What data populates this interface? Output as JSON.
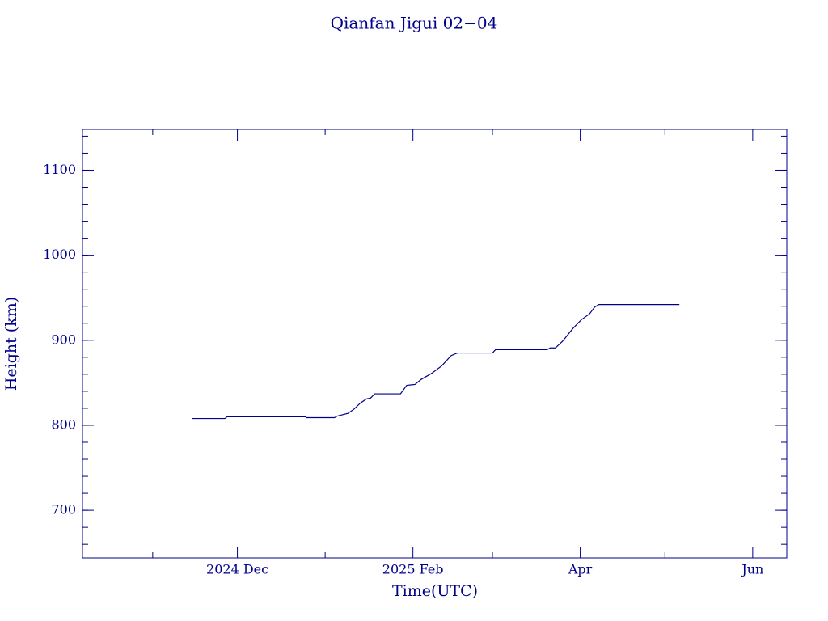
{
  "chart_data": {
    "type": "line",
    "title": "Qianfan Jigui 02−04",
    "xlabel": "Time(UTC)",
    "ylabel": "Height (km)",
    "color": "#00008b",
    "x": [
      2024.871,
      2024.903,
      2024.905,
      2024.981,
      2024.982,
      2025.009,
      2025.012,
      2025.022,
      2025.028,
      2025.034,
      2025.04,
      2025.044,
      2025.048,
      2025.073,
      2025.079,
      2025.087,
      2025.093,
      2025.103,
      2025.113,
      2025.122,
      2025.128,
      2025.162,
      2025.165,
      2025.215,
      2025.218,
      2025.223,
      2025.23,
      2025.24,
      2025.248,
      2025.256,
      2025.261,
      2025.265,
      2025.343
    ],
    "series": [
      {
        "name": "Height",
        "color": "#00008b",
        "values": [
          808,
          808,
          810,
          810,
          809,
          809,
          811,
          814,
          819,
          826,
          831,
          832,
          837,
          837,
          847,
          848,
          854,
          861,
          870,
          882,
          885,
          885,
          889,
          889,
          891,
          891,
          899,
          914,
          924,
          931,
          939,
          942,
          942
        ]
      }
    ],
    "xlim": [
      2024.765,
      2025.447
    ],
    "xticks": [
      {
        "value": 2024.915,
        "label": "2024 Dec"
      },
      {
        "value": 2025.085,
        "label": "2025 Feb"
      },
      {
        "value": 2025.247,
        "label": "Apr"
      },
      {
        "value": 2025.414,
        "label": "Jun"
      }
    ],
    "xminorticks": [
      2024.833,
      2025.0,
      2025.162,
      2025.329
    ],
    "ylim": [
      644,
      1148
    ],
    "yticks": [
      700,
      800,
      900,
      1000,
      1100
    ]
  }
}
